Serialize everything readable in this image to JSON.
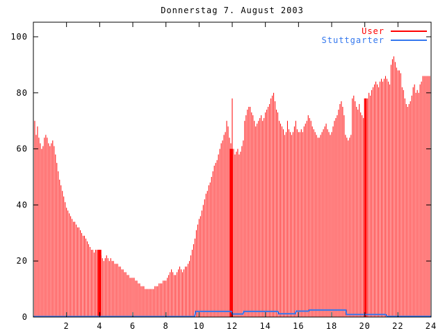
{
  "title": "Donnerstag 7. August 2003",
  "colors": {
    "background": "#ffffff",
    "axis": "#000000",
    "user": "#ff0000",
    "stuttgarter": "#3377ee"
  },
  "legend": {
    "position": "top-right",
    "items": [
      {
        "label": "User",
        "color": "#ff0000"
      },
      {
        "label": "Stuttgarter",
        "color": "#3377ee"
      }
    ]
  },
  "chart_data": {
    "type": "bar",
    "title": "Donnerstag 7. August 2003",
    "xlabel": "",
    "ylabel": "",
    "x_unit": "hour of day",
    "xlim": [
      0,
      24
    ],
    "ylim": [
      0,
      105
    ],
    "x_ticks": [
      2,
      4,
      6,
      8,
      10,
      12,
      14,
      16,
      18,
      20,
      22,
      24
    ],
    "y_ticks": [
      0,
      20,
      40,
      60,
      80,
      100
    ],
    "grid": false,
    "legend_position": "top-right",
    "series": [
      {
        "name": "User",
        "style": "impulses",
        "color": "#ff0000",
        "interval_minutes": 5,
        "values": [
          70,
          65,
          68,
          64,
          62,
          60,
          61,
          64,
          65,
          64,
          62,
          61,
          62,
          63,
          61,
          58,
          55,
          52,
          49,
          47,
          45,
          43,
          41,
          39,
          38,
          37,
          36,
          35,
          34,
          34,
          33,
          32,
          32,
          31,
          30,
          29,
          29,
          28,
          27,
          26,
          25,
          24,
          24,
          23,
          24,
          24,
          24,
          24,
          22,
          21,
          20,
          21,
          22,
          21,
          20,
          21,
          20,
          20,
          19,
          19,
          19,
          18,
          18,
          17,
          17,
          16,
          16,
          15,
          15,
          14,
          14,
          14,
          14,
          13,
          13,
          12,
          12,
          11,
          11,
          11,
          10,
          10,
          10,
          10,
          10,
          10,
          10,
          11,
          11,
          11,
          12,
          12,
          12,
          13,
          13,
          13,
          14,
          15,
          16,
          17,
          16,
          15,
          15,
          16,
          17,
          18,
          17,
          16,
          17,
          18,
          18,
          19,
          20,
          22,
          24,
          26,
          28,
          31,
          33,
          35,
          36,
          38,
          40,
          42,
          44,
          45,
          47,
          48,
          50,
          52,
          54,
          55,
          56,
          58,
          60,
          62,
          63,
          65,
          66,
          70,
          68,
          64,
          62,
          78,
          60,
          58,
          59,
          60,
          58,
          59,
          61,
          63,
          70,
          72,
          74,
          75,
          75,
          73,
          72,
          70,
          68,
          69,
          70,
          71,
          72,
          70,
          71,
          73,
          74,
          75,
          76,
          78,
          79,
          80,
          77,
          74,
          73,
          70,
          69,
          68,
          67,
          65,
          66,
          70,
          67,
          66,
          65,
          66,
          68,
          70,
          67,
          66,
          66,
          67,
          66,
          68,
          69,
          70,
          72,
          71,
          70,
          68,
          67,
          66,
          65,
          64,
          64,
          65,
          66,
          67,
          68,
          69,
          67,
          66,
          65,
          66,
          68,
          70,
          71,
          72,
          74,
          76,
          77,
          75,
          72,
          65,
          64,
          63,
          64,
          65,
          78,
          79,
          77,
          75,
          74,
          76,
          73,
          72,
          71,
          73,
          75,
          78,
          80,
          79,
          81,
          82,
          83,
          84,
          83,
          82,
          84,
          85,
          84,
          85,
          86,
          85,
          84,
          83,
          90,
          92,
          93,
          91,
          89,
          88,
          88,
          87,
          82,
          81,
          78,
          76,
          75,
          76,
          77,
          79,
          82,
          83,
          80,
          81,
          80,
          83,
          84,
          86,
          86,
          86,
          86,
          86,
          86,
          86
        ],
        "solid_spans": [
          {
            "from": 3.9,
            "to": 4.08,
            "value": 24
          },
          {
            "from": 11.88,
            "to": 12.02,
            "value": 60
          },
          {
            "from": 19.98,
            "to": 20.1,
            "value": 78
          }
        ]
      },
      {
        "name": "Stuttgarter",
        "style": "steps",
        "color": "#3377ee",
        "points": [
          [
            0,
            0.2
          ],
          [
            9.73,
            0.2
          ],
          [
            9.8,
            2.0
          ],
          [
            11.95,
            2.0
          ],
          [
            12.0,
            1.1
          ],
          [
            12.65,
            1.1
          ],
          [
            12.7,
            2.0
          ],
          [
            14.75,
            2.0
          ],
          [
            14.8,
            1.2
          ],
          [
            15.8,
            1.2
          ],
          [
            15.85,
            2.1
          ],
          [
            16.6,
            2.1
          ],
          [
            16.65,
            2.5
          ],
          [
            18.85,
            2.5
          ],
          [
            18.9,
            0.9
          ],
          [
            21.25,
            0.9
          ],
          [
            21.35,
            0.25
          ],
          [
            24,
            0.25
          ]
        ]
      }
    ]
  }
}
